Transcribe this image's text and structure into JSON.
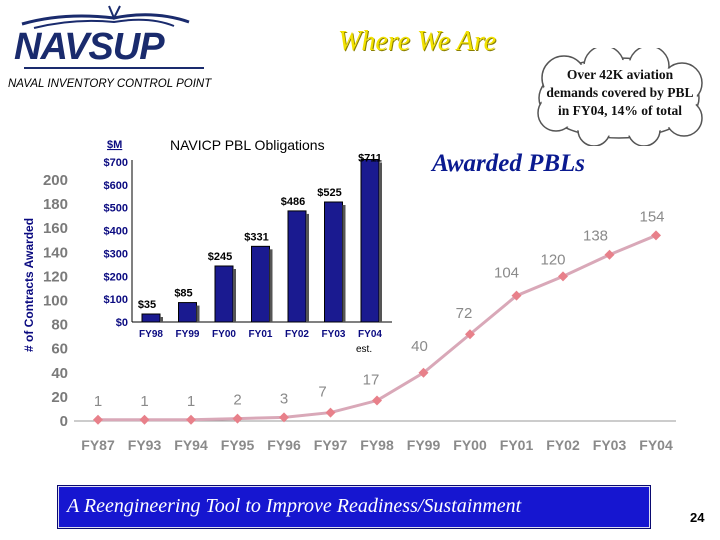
{
  "header": {
    "logo_text": "NAVSUP",
    "subtitle": "NAVAL INVENTORY CONTROL POINT",
    "title": "Where We Are"
  },
  "callout": {
    "text": "Over 42K aviation demands covered by PBL in FY04, 14% of total"
  },
  "awarded_label": "Awarded PBLs",
  "banner_text": "A Reengineering Tool to Improve Readiness/Sustainment",
  "page_number": "24",
  "colors": {
    "line": "#d0a0b0",
    "markers": "#e8808a",
    "bars": "#1a1a90",
    "banner": "#1616d0"
  },
  "chart_data": [
    {
      "type": "line",
      "title": "",
      "xlabel": "",
      "ylabel": "# of Contracts Awarded",
      "categories": [
        "FY87",
        "FY93",
        "FY94",
        "FY95",
        "FY96",
        "FY97",
        "FY98",
        "FY99",
        "FY00",
        "FY01",
        "FY02",
        "FY03",
        "FY04"
      ],
      "series": [
        {
          "values": [
            1,
            1,
            1,
            2,
            3,
            7,
            17,
            40,
            72,
            104,
            120,
            138,
            154
          ]
        }
      ],
      "data_labels": [
        "1",
        "1",
        "1",
        "2",
        "3",
        "7",
        "17",
        "40",
        "72",
        "104",
        "120",
        "138",
        "154"
      ],
      "yticks": [
        0,
        20,
        40,
        60,
        80,
        100,
        120,
        140,
        160,
        180,
        200
      ],
      "ylim": [
        0,
        200
      ],
      "grid": false,
      "legend": "none"
    },
    {
      "type": "bar",
      "title": "NAVICP PBL Obligations",
      "unit_label": "$M",
      "categories": [
        "FY98",
        "FY99",
        "FY00",
        "FY01",
        "FY02",
        "FY03",
        "FY04"
      ],
      "category_note": "est.",
      "values": [
        35,
        85,
        245,
        331,
        486,
        525,
        711
      ],
      "data_labels": [
        "$35",
        "$85",
        "$245",
        "$331",
        "$486",
        "$525",
        "$711"
      ],
      "ytick_labels": [
        "$0",
        "$100",
        "$200",
        "$300",
        "$400",
        "$500",
        "$600",
        "$700"
      ],
      "yticks": [
        0,
        100,
        200,
        300,
        400,
        500,
        600,
        700
      ],
      "ylim": [
        0,
        700
      ],
      "grid": false,
      "legend": "none"
    }
  ]
}
